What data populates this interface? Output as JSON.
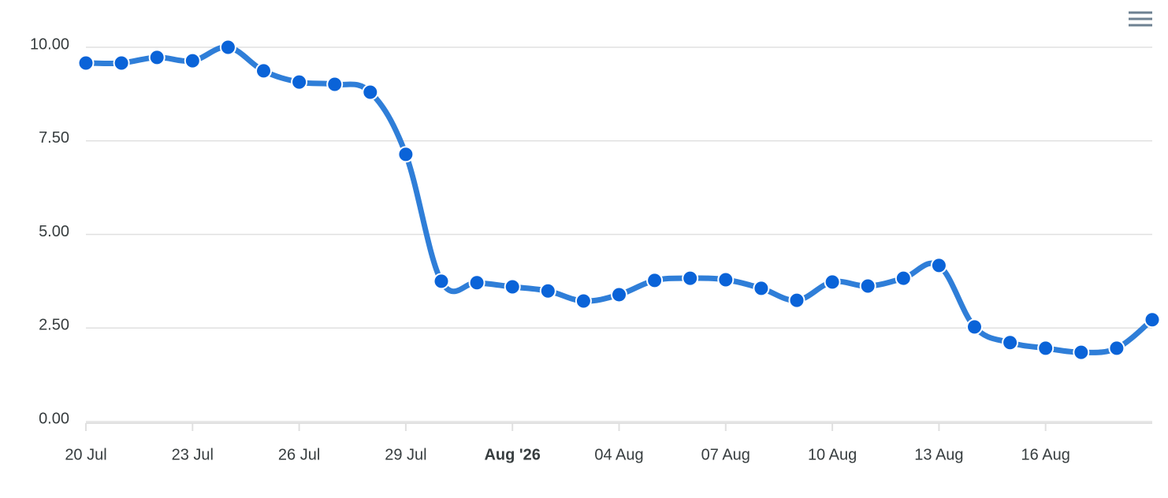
{
  "chart_data": {
    "type": "line",
    "categories": [
      "20 Jul",
      null,
      null,
      "23 Jul",
      null,
      null,
      "26 Jul",
      null,
      null,
      "29 Jul",
      null,
      null,
      "Aug '26",
      null,
      null,
      "04 Aug",
      null,
      null,
      "07 Aug",
      null,
      null,
      "10 Aug",
      null,
      null,
      "13 Aug",
      null,
      null,
      "16 Aug",
      null,
      null,
      null
    ],
    "series": [
      {
        "color": "#2f7ed8",
        "values": [
          9.58,
          9.58,
          9.73,
          9.64,
          10.0,
          9.37,
          9.07,
          9.01,
          8.8,
          7.14,
          3.75,
          3.71,
          3.6,
          3.49,
          3.22,
          3.39,
          3.77,
          3.83,
          3.79,
          3.56,
          3.24,
          3.73,
          3.62,
          3.83,
          4.17,
          2.53,
          2.11,
          1.96,
          1.85,
          1.96,
          2.72
        ]
      }
    ],
    "ylim": [
      0,
      10
    ],
    "yticks": [
      {
        "value": 0,
        "label": "0.00"
      },
      {
        "value": 2.5,
        "label": "2.50"
      },
      {
        "value": 5,
        "label": "5.00"
      },
      {
        "value": 7.5,
        "label": "7.50"
      },
      {
        "value": 10,
        "label": "10.00"
      }
    ],
    "grid": true
  }
}
